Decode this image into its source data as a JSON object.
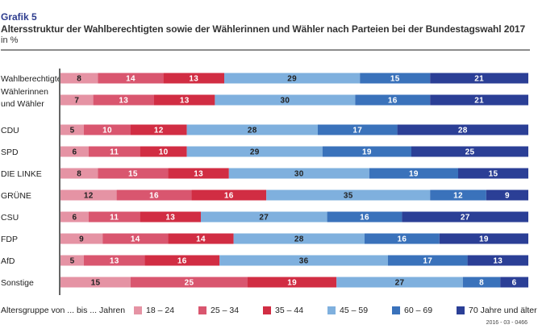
{
  "header": {
    "kicker": "Grafik 5",
    "title": "Altersstruktur der Wahlberechtigten sowie der Wählerinnen und Wähler nach Parteien bei der Bundestagswahl 2017",
    "unit": "in %"
  },
  "chart_data": {
    "type": "bar",
    "orientation": "horizontal",
    "stacked": true,
    "title": "Altersstruktur der Wahlberechtigten sowie der Wählerinnen und Wähler nach Parteien bei der Bundestagswahl 2017",
    "unit": "in %",
    "xlim": [
      0,
      100
    ],
    "grid": false,
    "legend_position": "bottom",
    "categories": [
      [
        "Wahlberechtigte"
      ],
      [
        "Wählerinnen",
        "und Wähler"
      ],
      [
        "CDU"
      ],
      [
        "SPD"
      ],
      [
        "DIE LINKE"
      ],
      [
        "GRÜNE"
      ],
      [
        "CSU"
      ],
      [
        "FDP"
      ],
      [
        "AfD"
      ],
      [
        "Sonstige"
      ]
    ],
    "series": [
      {
        "name": "18 – 24",
        "color": "#e593a4",
        "label_color": "#222222",
        "values": [
          8,
          7,
          5,
          6,
          8,
          12,
          6,
          9,
          5,
          15
        ]
      },
      {
        "name": "25 – 34",
        "color": "#d9566f",
        "label_color": "#ffffff",
        "values": [
          14,
          13,
          10,
          11,
          15,
          16,
          11,
          14,
          13,
          25
        ]
      },
      {
        "name": "35 – 44",
        "color": "#d12d43",
        "label_color": "#ffffff",
        "values": [
          13,
          13,
          12,
          10,
          13,
          16,
          13,
          14,
          16,
          19
        ]
      },
      {
        "name": "45 – 59",
        "color": "#7fb0de",
        "label_color": "#222222",
        "values": [
          29,
          30,
          28,
          29,
          30,
          35,
          27,
          28,
          36,
          27
        ]
      },
      {
        "name": "60 – 69",
        "color": "#3a72bb",
        "label_color": "#ffffff",
        "values": [
          15,
          16,
          17,
          19,
          19,
          12,
          16,
          16,
          17,
          8
        ]
      },
      {
        "name": "70 Jahre und älter",
        "color": "#2b3f96",
        "label_color": "#ffffff",
        "values": [
          21,
          21,
          28,
          25,
          15,
          9,
          27,
          19,
          13,
          6
        ]
      }
    ]
  },
  "legend": {
    "title": "Altersgruppe von ... bis ... Jahren"
  },
  "footnote": "2016 - 03 - 0466"
}
